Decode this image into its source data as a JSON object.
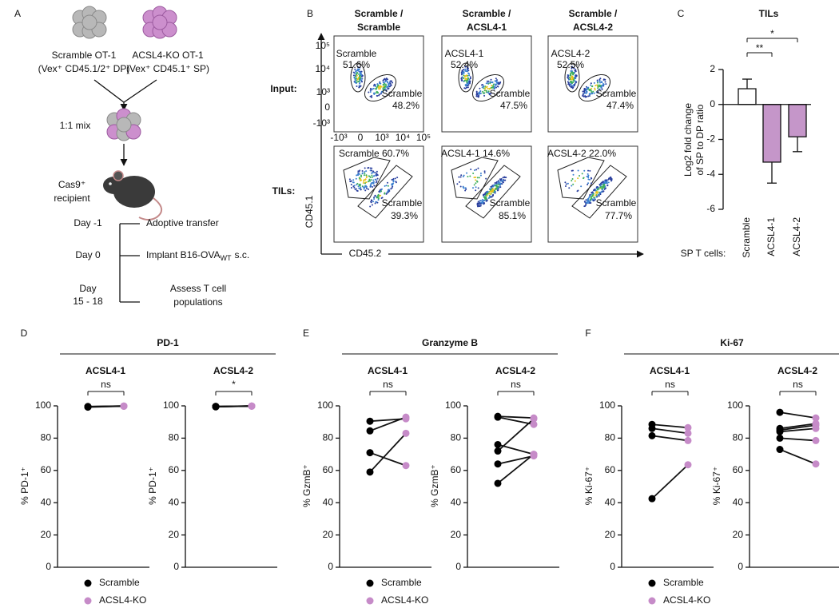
{
  "panel_a": {
    "label": "A",
    "scramble_cells": "Scramble OT-1",
    "scramble_phenotype": "(Vex⁺ CD45.1/2⁺ DP)",
    "ko_cells": "ACSL4-KO OT-1",
    "ko_phenotype": "(Vex⁺ CD45.1⁺ SP)",
    "mix": "1:1 mix",
    "recipient": [
      "Cas9⁺",
      "recipient"
    ],
    "timeline": [
      {
        "day": [
          "Day -1"
        ],
        "event": [
          "Adoptive transfer"
        ]
      },
      {
        "day": [
          "Day 0"
        ],
        "event": [
          "Implant B16-OVA"
        ],
        "event_sub": "WT",
        "event_suffix": "s.c."
      },
      {
        "day": [
          "Day",
          "15 - 18"
        ],
        "event": [
          "Assess T cell",
          "populations"
        ]
      }
    ]
  },
  "panel_b": {
    "label": "B",
    "columns": [
      [
        "Scramble /",
        "Scramble"
      ],
      [
        "Scramble /",
        "ACSL4-1"
      ],
      [
        "Scramble /",
        "ACSL4-2"
      ]
    ],
    "rows": [
      "Input:",
      "TILs:"
    ],
    "y_axis": "CD45.1",
    "x_axis": "CD45.2",
    "y_ticks": [
      "10⁵",
      "10⁴",
      "10³",
      "0",
      "-10³"
    ],
    "x_ticks": [
      "-10³",
      "0",
      "10³",
      "10⁴",
      "10⁵"
    ],
    "gates": [
      [
        {
          "upper": [
            "Scramble",
            "51.6%"
          ],
          "lower": [
            "Scramble",
            "48.2%"
          ]
        },
        {
          "upper": [
            "ACSL4-1",
            "52.4%"
          ],
          "lower": [
            "Scramble",
            "47.5%"
          ]
        },
        {
          "upper": [
            "ACSL4-2",
            "52.5%"
          ],
          "lower": [
            "Scramble",
            "47.4%"
          ]
        }
      ],
      [
        {
          "upper": [
            "Scramble 60.7%"
          ],
          "lower": [
            "Scramble",
            "39.3%"
          ]
        },
        {
          "upper": [
            "ACSL4-1 14.6%"
          ],
          "lower": [
            "Scramble",
            "85.1%"
          ]
        },
        {
          "upper": [
            "ACSL4-2 22.0%"
          ],
          "lower": [
            "Scramble",
            "77.7%"
          ]
        }
      ]
    ]
  },
  "panel_groups": [
    {
      "label": "D",
      "title": "PD-1"
    },
    {
      "label": "E",
      "title": "Granzyme B"
    },
    {
      "label": "F",
      "title": "Ki-67"
    }
  ],
  "chart_data": [
    {
      "type": "bar",
      "panel_label": "C",
      "title": "TILs",
      "ylabel": [
        "Log2 fold change",
        "of SP to DP ratio"
      ],
      "xlabel": "SP T cells:",
      "categories": [
        "Scramble",
        "ACSL4-1",
        "ACSL4-2"
      ],
      "values": [
        0.9,
        -3.3,
        -1.85
      ],
      "errors": [
        0.55,
        1.2,
        0.85
      ],
      "color": "#c596c9",
      "ylim": [
        -6,
        2
      ],
      "yticks": [
        -6,
        -4,
        -2,
        0,
        2
      ],
      "annotations": [
        "**",
        "*"
      ]
    },
    {
      "type": "paired",
      "title": "ACSL4-1",
      "ylabel": "% PD-1⁺",
      "annotation": "ns",
      "ylim": [
        0,
        100
      ],
      "yticks": [
        0,
        20,
        40,
        60,
        80,
        100
      ],
      "series": [
        {
          "name": "Scramble",
          "color": "#000000",
          "values": [
            99.2,
            99.5,
            99.6,
            99.4
          ]
        },
        {
          "name": "ACSL4-KO",
          "color": "#c68bc8",
          "values": [
            99.8,
            99.9,
            99.9,
            99.8
          ]
        }
      ]
    },
    {
      "type": "paired",
      "title": "ACSL4-2",
      "ylabel": "% PD-1⁺",
      "annotation": "*",
      "ylim": [
        0,
        100
      ],
      "yticks": [
        0,
        20,
        40,
        60,
        80,
        100
      ],
      "series": [
        {
          "name": "Scramble",
          "color": "#000000",
          "values": [
            99.4,
            99.6,
            99.5,
            99.7,
            99.5
          ]
        },
        {
          "name": "ACSL4-KO",
          "color": "#c68bc8",
          "values": [
            99.9,
            99.9,
            99.8,
            99.9,
            99.9
          ]
        }
      ]
    },
    {
      "type": "paired",
      "title": "ACSL4-1",
      "ylabel": "% GzmB⁺",
      "annotation": "ns",
      "ylim": [
        0,
        100
      ],
      "yticks": [
        0,
        20,
        40,
        60,
        80,
        100
      ],
      "series": [
        {
          "name": "Scramble",
          "color": "#000000",
          "values": [
            90.5,
            84.5,
            71,
            59
          ]
        },
        {
          "name": "ACSL4-KO",
          "color": "#c68bc8",
          "values": [
            92,
            93,
            63,
            83
          ]
        }
      ]
    },
    {
      "type": "paired",
      "title": "ACSL4-2",
      "ylabel": "% GzmB⁺",
      "annotation": "ns",
      "ylim": [
        0,
        100
      ],
      "yticks": [
        0,
        20,
        40,
        60,
        80,
        100
      ],
      "series": [
        {
          "name": "Scramble",
          "color": "#000000",
          "values": [
            93.5,
            93,
            76,
            72,
            64,
            52
          ]
        },
        {
          "name": "ACSL4-KO",
          "color": "#c68bc8",
          "values": [
            92.5,
            88.5,
            70,
            92,
            69,
            70
          ]
        }
      ]
    },
    {
      "type": "paired",
      "title": "ACSL4-1",
      "ylabel": "% Ki-67⁺",
      "annotation": "ns",
      "ylim": [
        0,
        100
      ],
      "yticks": [
        0,
        20,
        40,
        60,
        80,
        100
      ],
      "series": [
        {
          "name": "Scramble",
          "color": "#000000",
          "values": [
            88.5,
            86,
            81.5,
            42.5
          ]
        },
        {
          "name": "ACSL4-KO",
          "color": "#c68bc8",
          "values": [
            86.5,
            83,
            78.5,
            63.5
          ]
        }
      ]
    },
    {
      "type": "paired",
      "title": "ACSL4-2",
      "ylabel": "% Ki-67⁺",
      "annotation": "ns",
      "ylim": [
        0,
        100
      ],
      "yticks": [
        0,
        20,
        40,
        60,
        80,
        100
      ],
      "series": [
        {
          "name": "Scramble",
          "color": "#000000",
          "values": [
            96,
            86,
            84,
            80,
            73,
            85
          ]
        },
        {
          "name": "ACSL4-KO",
          "color": "#c68bc8",
          "values": [
            92.5,
            89,
            86,
            78.5,
            64,
            88
          ]
        }
      ]
    }
  ]
}
